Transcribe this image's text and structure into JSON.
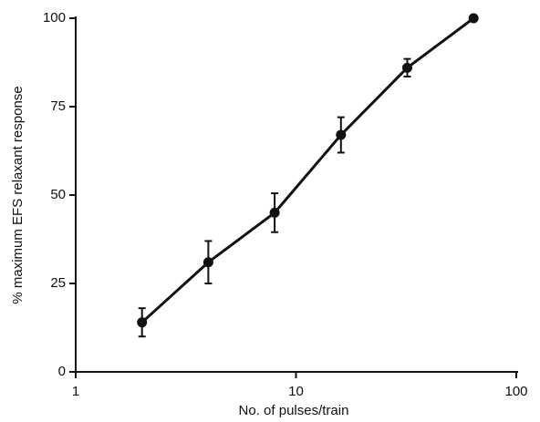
{
  "chart_data": {
    "type": "line",
    "x_label": "No. of pulses/train",
    "y_label": "% maximum EFS relaxant response",
    "x": [
      2,
      4,
      8,
      16,
      32,
      64
    ],
    "values": [
      14,
      31,
      45,
      67,
      86,
      100
    ],
    "errors": [
      4,
      6,
      5.5,
      5,
      2.5,
      null
    ],
    "color": "#111111",
    "xlim": [
      1,
      100
    ],
    "xticks": [
      1,
      10,
      100
    ],
    "xscale": "log",
    "ylim": [
      0,
      100
    ],
    "yticks": [
      0,
      25,
      50,
      75,
      100
    ],
    "grid": false
  }
}
